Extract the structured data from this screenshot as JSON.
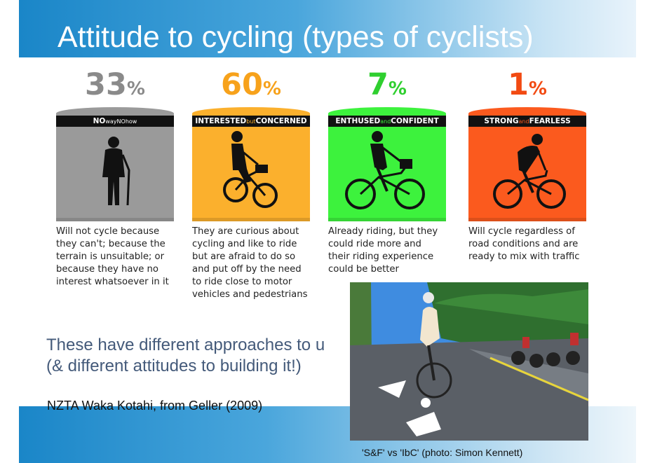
{
  "slide": {
    "title": "Attitude to cycling (types of cyclists)",
    "approach_lines": [
      "These have different approaches to u",
      "(& different attitudes to building it!)"
    ],
    "source": "NZTA Waka Kotahi,  from Geller (2009)",
    "photo_caption": "'S&F' vs 'IbC' (photo: Simon Kennett)"
  },
  "categories": [
    {
      "percent": "33",
      "percent_sign": "%",
      "label_a": "NO",
      "label_b": "wayNO",
      "label_c": "how",
      "color": "#9a9a9a",
      "percent_color": "#8a8a8a",
      "icon": "walking-elder-icon",
      "description": [
        "Will not cycle because",
        "they can't; because the",
        "terrain is unsuitable; or",
        "because they have no",
        "interest whatsoever in it"
      ]
    },
    {
      "percent": "60",
      "percent_sign": "%",
      "label_a": "INTERESTED",
      "label_b": "but",
      "label_c": "CONCERNED",
      "color": "#fbb02d",
      "percent_color": "#f7a21b",
      "icon": "cyclist-basket-icon",
      "description": [
        "They are curious about",
        "cycling and like to ride",
        "but are afraid to do so",
        "and put off by the need",
        "to ride close to motor",
        "vehicles and pedestrians"
      ]
    },
    {
      "percent": "7",
      "percent_sign": "%",
      "label_a": "ENTHUSED",
      "label_b": "and",
      "label_c": "CONFIDENT",
      "color": "#3df23d",
      "percent_color": "#2fcf2f",
      "icon": "cyclist-upright-icon",
      "description": [
        "Already riding, but they",
        "could ride more and",
        "their riding experience",
        "could be better"
      ]
    },
    {
      "percent": "1",
      "percent_sign": "%",
      "label_a": "STRONG",
      "label_b": "and",
      "label_c": "FEARLESS",
      "color": "#fb5a1e",
      "percent_color": "#f24a12",
      "icon": "cyclist-racing-icon",
      "description": [
        "Will cycle regardless of",
        "road conditions and are",
        "ready to mix with traffic"
      ]
    }
  ]
}
